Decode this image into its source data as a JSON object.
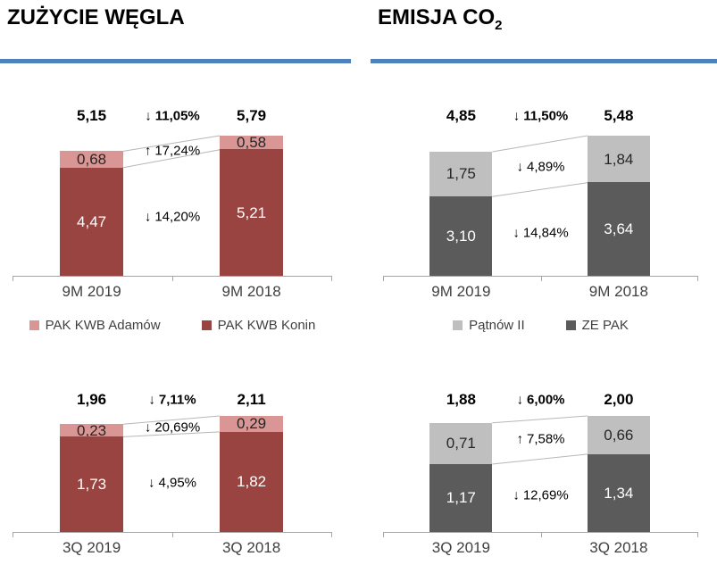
{
  "sections": [
    {
      "title": "ZUŻYCIE WĘGLA",
      "title_sub": "",
      "rule_color": "#4f81bd"
    },
    {
      "title": "EMISJA CO",
      "title_sub": "2",
      "rule_color": "#4f81bd"
    }
  ],
  "colors": {
    "rule_blue": "#4f81bd",
    "axis_gray": "#a6a6a6",
    "connector_gray": "#b7b7b7",
    "category_text": "#404040",
    "legend_text": "#404040"
  },
  "chart_data": [
    {
      "id": "coal-9m",
      "type": "bar",
      "stacked": true,
      "categories": [
        "9M 2019",
        "9M 2018"
      ],
      "series": [
        {
          "name": "PAK KWB Adamów",
          "stack_position": "top",
          "color": "#d99694",
          "label_color": "#262626",
          "values": [
            0.68,
            0.58
          ],
          "labels": [
            "0,68",
            "0,58"
          ]
        },
        {
          "name": "PAK KWB Konin",
          "stack_position": "bottom",
          "color": "#9a4442",
          "label_color": "#ffffff",
          "values": [
            4.47,
            5.21
          ],
          "labels": [
            "4,47",
            "5,21"
          ]
        }
      ],
      "totals": {
        "values": [
          5.15,
          5.79
        ],
        "labels": [
          "5,15",
          "5,79"
        ]
      },
      "deltas": {
        "total": {
          "direction": "down",
          "label": "11,05%"
        },
        "top_segment": {
          "direction": "up",
          "label": "17,24%"
        },
        "bottom_segment": {
          "direction": "down",
          "label": "14,20%"
        }
      },
      "legend_visible": true,
      "legend_position": "bottom"
    },
    {
      "id": "co2-9m",
      "type": "bar",
      "stacked": true,
      "categories": [
        "9M 2019",
        "9M 2018"
      ],
      "series": [
        {
          "name": "Pątnów II",
          "stack_position": "top",
          "color": "#bfbfbf",
          "label_color": "#262626",
          "values": [
            1.75,
            1.84
          ],
          "labels": [
            "1,75",
            "1,84"
          ]
        },
        {
          "name": "ZE PAK",
          "stack_position": "bottom",
          "color": "#5b5b5b",
          "label_color": "#ffffff",
          "values": [
            3.1,
            3.64
          ],
          "labels": [
            "3,10",
            "3,64"
          ]
        }
      ],
      "totals": {
        "values": [
          4.85,
          5.48
        ],
        "labels": [
          "4,85",
          "5,48"
        ]
      },
      "deltas": {
        "total": {
          "direction": "down",
          "label": "11,50%"
        },
        "top_segment": {
          "direction": "down",
          "label": "4,89%"
        },
        "bottom_segment": {
          "direction": "down",
          "label": "14,84%"
        }
      },
      "legend_visible": true,
      "legend_position": "bottom"
    },
    {
      "id": "coal-3q",
      "type": "bar",
      "stacked": true,
      "categories": [
        "3Q 2019",
        "3Q 2018"
      ],
      "series": [
        {
          "name": "PAK KWB Adamów",
          "stack_position": "top",
          "color": "#d99694",
          "label_color": "#262626",
          "values": [
            0.23,
            0.29
          ],
          "labels": [
            "0,23",
            "0,29"
          ]
        },
        {
          "name": "PAK KWB Konin",
          "stack_position": "bottom",
          "color": "#9a4442",
          "label_color": "#ffffff",
          "values": [
            1.73,
            1.82
          ],
          "labels": [
            "1,73",
            "1,82"
          ]
        }
      ],
      "totals": {
        "values": [
          1.96,
          2.11
        ],
        "labels": [
          "1,96",
          "2,11"
        ]
      },
      "deltas": {
        "total": {
          "direction": "down",
          "label": "7,11%"
        },
        "top_segment": {
          "direction": "down",
          "label": "20,69%"
        },
        "bottom_segment": {
          "direction": "down",
          "label": "4,95%"
        }
      },
      "legend_visible": false,
      "legend_position": "none"
    },
    {
      "id": "co2-3q",
      "type": "bar",
      "stacked": true,
      "categories": [
        "3Q 2019",
        "3Q 2018"
      ],
      "series": [
        {
          "name": "Pątnów II",
          "stack_position": "top",
          "color": "#bfbfbf",
          "label_color": "#262626",
          "values": [
            0.71,
            0.66
          ],
          "labels": [
            "0,71",
            "0,66"
          ]
        },
        {
          "name": "ZE PAK",
          "stack_position": "bottom",
          "color": "#5b5b5b",
          "label_color": "#ffffff",
          "values": [
            1.17,
            1.34
          ],
          "labels": [
            "1,17",
            "1,34"
          ]
        }
      ],
      "totals": {
        "values": [
          1.88,
          2.0
        ],
        "labels": [
          "1,88",
          "2,00"
        ]
      },
      "deltas": {
        "total": {
          "direction": "down",
          "label": "6,00%"
        },
        "top_segment": {
          "direction": "up",
          "label": "7,58%"
        },
        "bottom_segment": {
          "direction": "down",
          "label": "12,69%"
        }
      },
      "legend_visible": false,
      "legend_position": "none"
    }
  ]
}
